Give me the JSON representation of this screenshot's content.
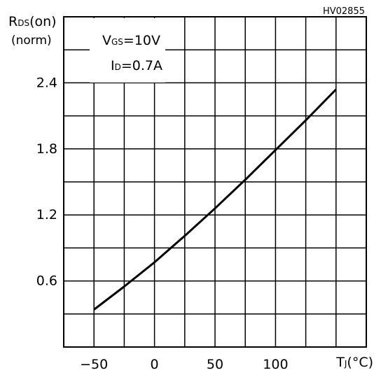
{
  "figure_id": "HV02855",
  "colors": {
    "line": "#000000",
    "grid": "#000000",
    "background": "#ffffff"
  },
  "chart_data": {
    "type": "line",
    "title": "",
    "ylabel_main": "R",
    "ylabel_sub": "DS",
    "ylabel_suffix": "(on)",
    "ylabel_unit": "(norm)",
    "xlabel_main": "T",
    "xlabel_sub": "J",
    "xlabel_suffix": "(°C)",
    "xlim": [
      -75,
      175
    ],
    "ylim": [
      0,
      3.0
    ],
    "x_gridlines": [
      -50,
      -25,
      0,
      25,
      50,
      75,
      100,
      125,
      150
    ],
    "y_gridlines": [
      0.3,
      0.6,
      0.9,
      1.2,
      1.5,
      1.8,
      2.1,
      2.4,
      2.7
    ],
    "x_ticks": [
      {
        "value": -50,
        "label": "−50"
      },
      {
        "value": 0,
        "label": "0"
      },
      {
        "value": 50,
        "label": "50"
      },
      {
        "value": 100,
        "label": "100"
      }
    ],
    "y_ticks": [
      {
        "value": 0.6,
        "label": "0.6"
      },
      {
        "value": 1.2,
        "label": "1.2"
      },
      {
        "value": 1.8,
        "label": "1.8"
      },
      {
        "value": 2.4,
        "label": "2.4"
      }
    ],
    "annotation": {
      "line1_main": "V",
      "line1_sub": "GS",
      "line1_rest": "=10V",
      "line2_main": "I",
      "line2_sub": "D",
      "line2_rest": "=0.7A"
    },
    "grid": true,
    "series": [
      {
        "x": [
          -50,
          -25,
          0,
          25,
          50,
          75,
          100,
          125,
          150
        ],
        "values": [
          0.34,
          0.55,
          0.77,
          1.01,
          1.26,
          1.52,
          1.79,
          2.06,
          2.34
        ]
      }
    ]
  }
}
